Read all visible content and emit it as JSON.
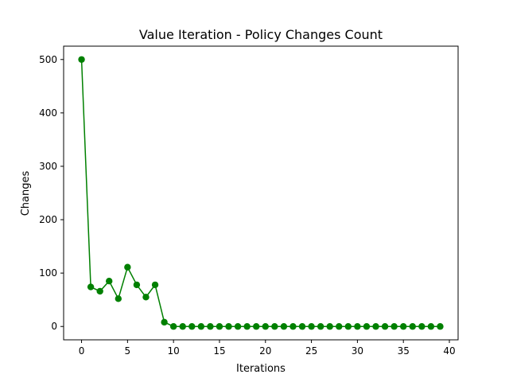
{
  "chart_data": {
    "type": "line",
    "title": "Value Iteration - Policy Changes Count",
    "xlabel": "Iterations",
    "ylabel": "Changes",
    "xlim": [
      -1.95,
      40.95
    ],
    "ylim": [
      -25,
      525
    ],
    "xticks": [
      0,
      5,
      10,
      15,
      20,
      25,
      30,
      35,
      40
    ],
    "yticks": [
      0,
      100,
      200,
      300,
      400,
      500
    ],
    "grid": false,
    "legend": "none",
    "series": [
      {
        "color": "#008000",
        "marker": "circle",
        "x": [
          0,
          1,
          2,
          3,
          4,
          5,
          6,
          7,
          8,
          9,
          10,
          11,
          12,
          13,
          14,
          15,
          16,
          17,
          18,
          19,
          20,
          21,
          22,
          23,
          24,
          25,
          26,
          27,
          28,
          29,
          30,
          31,
          32,
          33,
          34,
          35,
          36,
          37,
          38,
          39
        ],
        "values": [
          500,
          74,
          66,
          85,
          52,
          111,
          78,
          55,
          78,
          8,
          0,
          0,
          0,
          0,
          0,
          0,
          0,
          0,
          0,
          0,
          0,
          0,
          0,
          0,
          0,
          0,
          0,
          0,
          0,
          0,
          0,
          0,
          0,
          0,
          0,
          0,
          0,
          0,
          0,
          0
        ]
      }
    ]
  }
}
